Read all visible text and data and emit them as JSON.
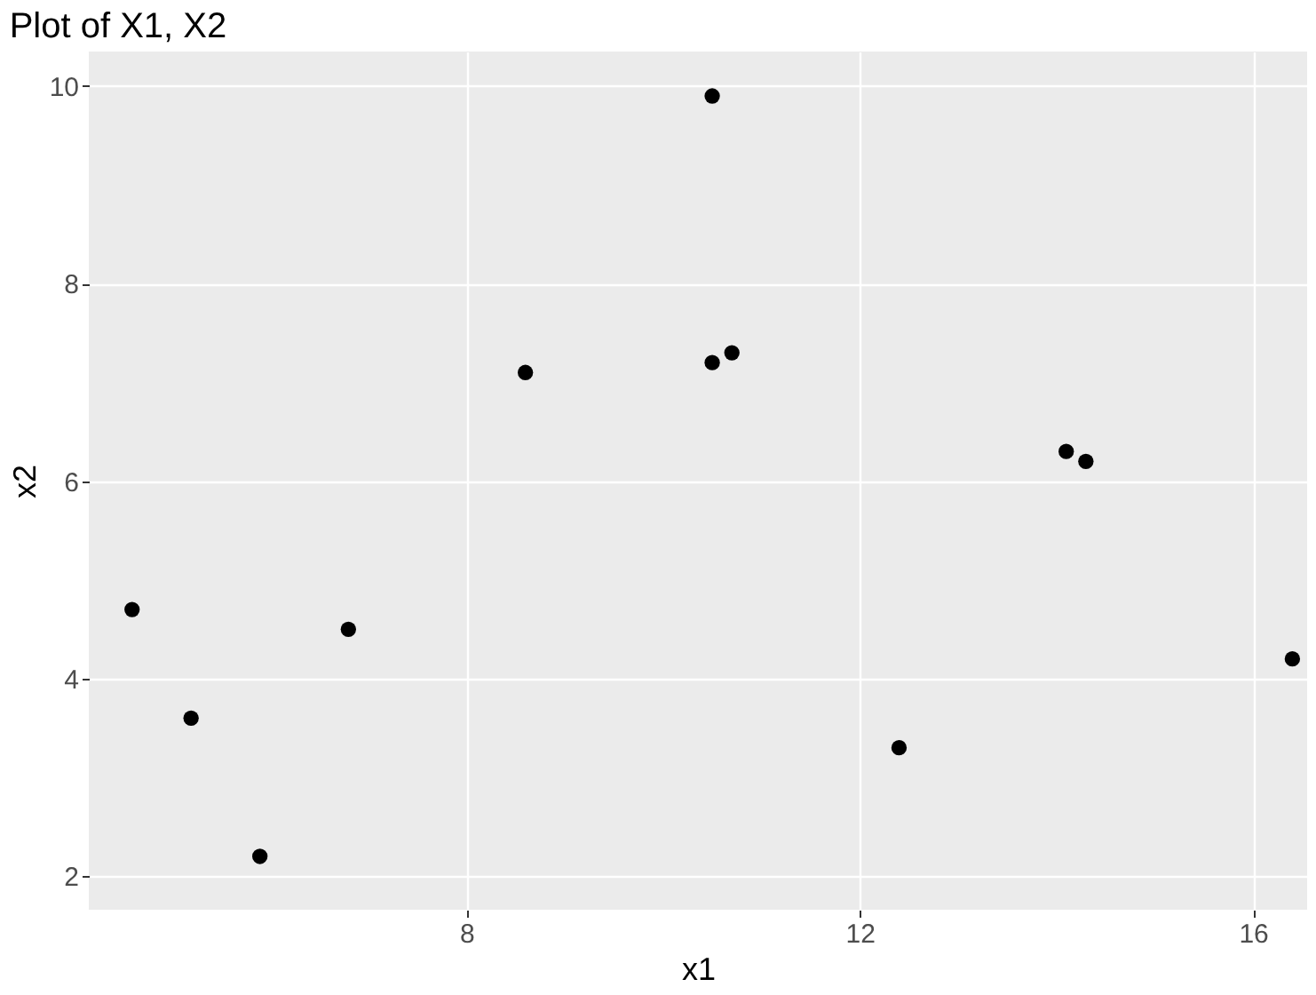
{
  "chart_data": {
    "type": "scatter",
    "title": "Plot of X1, X2",
    "xlabel": "x1",
    "ylabel": "x2",
    "x": [
      4.6,
      5.2,
      5.9,
      6.8,
      8.6,
      10.5,
      10.5,
      10.7,
      12.4,
      14.1,
      14.3,
      16.4
    ],
    "series": [
      {
        "color": "#000000",
        "values": [
          4.7,
          3.6,
          2.2,
          4.5,
          7.1,
          9.9,
          7.2,
          7.3,
          3.3,
          6.3,
          6.2,
          4.2
        ]
      }
    ],
    "xlim": [
      4.16,
      16.55
    ],
    "ylim": [
      1.66,
      10.35
    ],
    "xticks": [
      8,
      12,
      16
    ],
    "yticks": [
      2,
      4,
      6,
      8,
      10
    ],
    "grid": true,
    "marker": "circle"
  }
}
